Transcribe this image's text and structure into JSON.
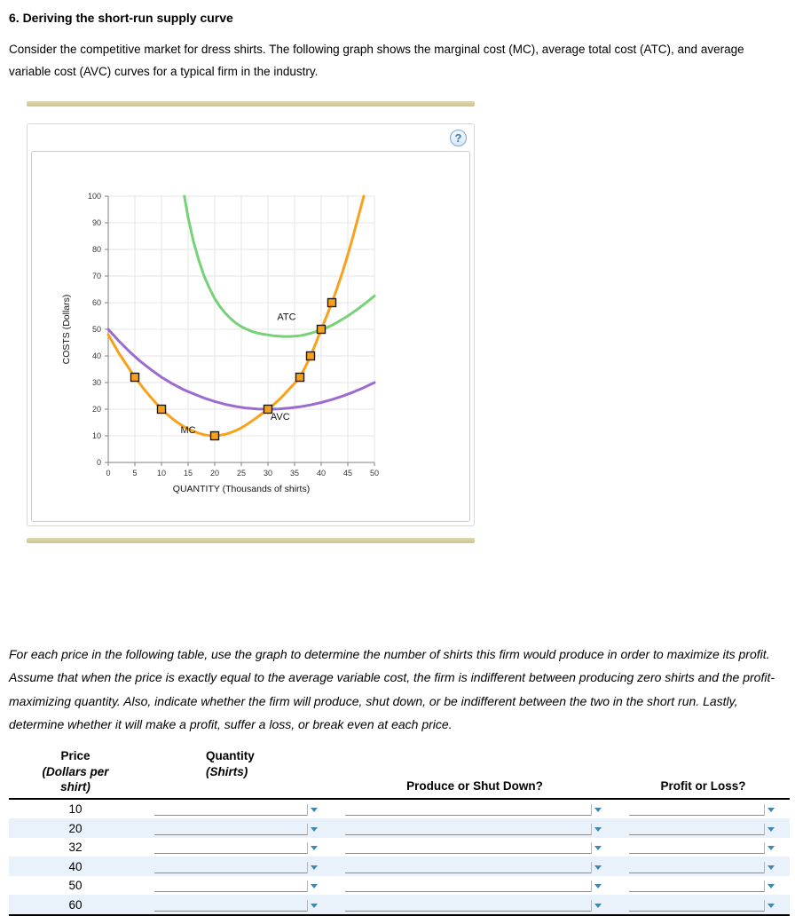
{
  "header": {
    "title": "6. Deriving the short-run supply curve",
    "intro": "Consider the competitive market for dress shirts. The following graph shows the marginal cost (MC), average total cost (ATC), and average variable cost (AVC) curves for a typical firm in the industry."
  },
  "graph": {
    "help_label": "?"
  },
  "chart_data": {
    "type": "line",
    "title": "",
    "xlabel": "QUANTITY (Thousands of shirts)",
    "ylabel": "COSTS (Dollars)",
    "xlim": [
      0,
      50
    ],
    "ylim": [
      0,
      100
    ],
    "xticks": [
      0,
      5,
      10,
      15,
      20,
      25,
      30,
      35,
      40,
      45,
      50
    ],
    "yticks": [
      0,
      10,
      20,
      30,
      40,
      50,
      60,
      70,
      80,
      90,
      100
    ],
    "grid": true,
    "marker_color": "#f9a11b",
    "series": [
      {
        "name": "ATC",
        "color": "#76d276",
        "points": [
          [
            14.3,
            100
          ],
          [
            15,
            92
          ],
          [
            16,
            83
          ],
          [
            17,
            76
          ],
          [
            18,
            70
          ],
          [
            19,
            65.5
          ],
          [
            20,
            61.5
          ],
          [
            21,
            58.5
          ],
          [
            22,
            56
          ],
          [
            23,
            54
          ],
          [
            24,
            52.3
          ],
          [
            25,
            51
          ],
          [
            26,
            50
          ],
          [
            27,
            49.2
          ],
          [
            28,
            48.6
          ],
          [
            29,
            48.2
          ],
          [
            30,
            47.9
          ],
          [
            31,
            47.6
          ],
          [
            32,
            47.4
          ],
          [
            33,
            47.3
          ],
          [
            34,
            47.3
          ],
          [
            35,
            47.4
          ],
          [
            36,
            47.6
          ],
          [
            37,
            48
          ],
          [
            38,
            48.5
          ],
          [
            39,
            49.1
          ],
          [
            40,
            49.8
          ],
          [
            41,
            50.6
          ],
          [
            42,
            51.5
          ],
          [
            43,
            52.6
          ],
          [
            44,
            53.8
          ],
          [
            45,
            55
          ],
          [
            46,
            56.4
          ],
          [
            47,
            57.8
          ],
          [
            48,
            59.3
          ],
          [
            49,
            60.9
          ],
          [
            50,
            62.5
          ]
        ]
      },
      {
        "name": "AVC",
        "color": "#9c6bcf",
        "points": [
          [
            0,
            50
          ],
          [
            2,
            45.6
          ],
          [
            4,
            41.6
          ],
          [
            5,
            39.8
          ],
          [
            6,
            38
          ],
          [
            8,
            34.9
          ],
          [
            10,
            32
          ],
          [
            12,
            29.6
          ],
          [
            14,
            27.5
          ],
          [
            15,
            26.6
          ],
          [
            16,
            25.8
          ],
          [
            18,
            24.2
          ],
          [
            20,
            22.9
          ],
          [
            22,
            21.8
          ],
          [
            24,
            21
          ],
          [
            26,
            20.4
          ],
          [
            28,
            20.1
          ],
          [
            30,
            20
          ],
          [
            32,
            20.1
          ],
          [
            34,
            20.4
          ],
          [
            36,
            20.9
          ],
          [
            38,
            21.6
          ],
          [
            40,
            22.5
          ],
          [
            42,
            23.6
          ],
          [
            44,
            24.9
          ],
          [
            46,
            26.4
          ],
          [
            48,
            28.1
          ],
          [
            50,
            30
          ]
        ]
      },
      {
        "name": "MC",
        "color": "#f9a11b",
        "points": [
          [
            0,
            48
          ],
          [
            1,
            44.5
          ],
          [
            2,
            41
          ],
          [
            3,
            38
          ],
          [
            4,
            35
          ],
          [
            5,
            32
          ],
          [
            6,
            29.4
          ],
          [
            7,
            26.8
          ],
          [
            8,
            24.5
          ],
          [
            9,
            22.2
          ],
          [
            10,
            20
          ],
          [
            11,
            18.2
          ],
          [
            12,
            16.5
          ],
          [
            13,
            15
          ],
          [
            14,
            13.7
          ],
          [
            15,
            12.6
          ],
          [
            16,
            11.7
          ],
          [
            17,
            11
          ],
          [
            18,
            10.4
          ],
          [
            19,
            10.1
          ],
          [
            20,
            10
          ],
          [
            21,
            10.2
          ],
          [
            22,
            10.6
          ],
          [
            23,
            11.2
          ],
          [
            24,
            12
          ],
          [
            25,
            13
          ],
          [
            26,
            14.2
          ],
          [
            27,
            15.6
          ],
          [
            28,
            17
          ],
          [
            29,
            18.5
          ],
          [
            30,
            20
          ],
          [
            31,
            21.6
          ],
          [
            32,
            23.4
          ],
          [
            33,
            25.4
          ],
          [
            34,
            27.6
          ],
          [
            35,
            29.7
          ],
          [
            36,
            32
          ],
          [
            37,
            35.8
          ],
          [
            38,
            40
          ],
          [
            39,
            44.8
          ],
          [
            40,
            50
          ],
          [
            41,
            54.8
          ],
          [
            42,
            60
          ],
          [
            43,
            65.5
          ],
          [
            44,
            71.5
          ],
          [
            45,
            78
          ],
          [
            46,
            85
          ],
          [
            47,
            92.5
          ],
          [
            48,
            100
          ]
        ]
      }
    ],
    "markers": [
      [
        5,
        32
      ],
      [
        10,
        20
      ],
      [
        20,
        10
      ],
      [
        30,
        20
      ],
      [
        36,
        32
      ],
      [
        38,
        40
      ],
      [
        40,
        50
      ],
      [
        42,
        60
      ]
    ],
    "annotations": [
      {
        "text": "ATC",
        "x": 33.5,
        "y": 53.5
      },
      {
        "text": "AVC",
        "x": 32.3,
        "y": 16
      },
      {
        "text": "MC",
        "x": 15,
        "y": 11
      }
    ]
  },
  "instructions": "For each price in the following table, use the graph to determine the number of shirts this firm would produce in order to maximize its profit. Assume that when the price is exactly equal to the average variable cost, the firm is indifferent between producing zero shirts and the profit-maximizing quantity. Also, indicate whether the firm will produce, shut down, or be indifferent between the two in the short run. Lastly, determine whether it will make a profit, suffer a loss, or break even at each price.",
  "table": {
    "price_header": {
      "line1": "Price",
      "line2": "(Dollars per",
      "line3": "shirt)"
    },
    "quantity_header": {
      "line1": "Quantity",
      "line2": "(Shirts)"
    },
    "produce_header": "Produce or Shut Down?",
    "profit_header": "Profit or Loss?",
    "rows": [
      {
        "price": "10"
      },
      {
        "price": "20"
      },
      {
        "price": "32"
      },
      {
        "price": "40"
      },
      {
        "price": "50"
      },
      {
        "price": "60"
      }
    ]
  },
  "colors": {
    "dropdown_arrow": "#3e89ad",
    "row_alt": "#e9f1fa",
    "tan_bar_light": "#ded7ae",
    "tan_bar_dark": "#ccc491"
  }
}
